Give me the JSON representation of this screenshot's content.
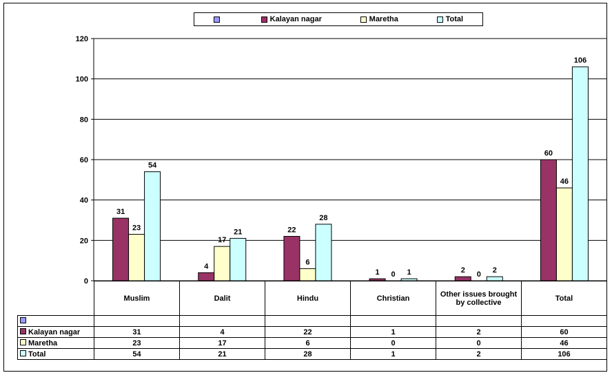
{
  "chart_data": {
    "type": "bar",
    "categories": [
      "Muslim",
      "Dalit",
      "Hindu",
      "Christian",
      "Other issues brought by collective",
      "Total"
    ],
    "series": [
      {
        "name": "",
        "color": "#9999ff",
        "values": [
          null,
          null,
          null,
          null,
          null,
          null
        ]
      },
      {
        "name": "Kalayan nagar",
        "color": "#993366",
        "values": [
          31,
          4,
          22,
          1,
          2,
          60
        ]
      },
      {
        "name": "Maretha",
        "color": "#ffffcc",
        "values": [
          23,
          17,
          6,
          0,
          0,
          46
        ]
      },
      {
        "name": "Total",
        "color": "#ccffff",
        "values": [
          54,
          21,
          28,
          1,
          2,
          106
        ]
      }
    ],
    "yticks": [
      "0",
      "20",
      "40",
      "60",
      "80",
      "100",
      "120"
    ],
    "ylim": [
      0,
      120
    ],
    "grid": true,
    "legend_position": "top-center",
    "data_table": true
  }
}
